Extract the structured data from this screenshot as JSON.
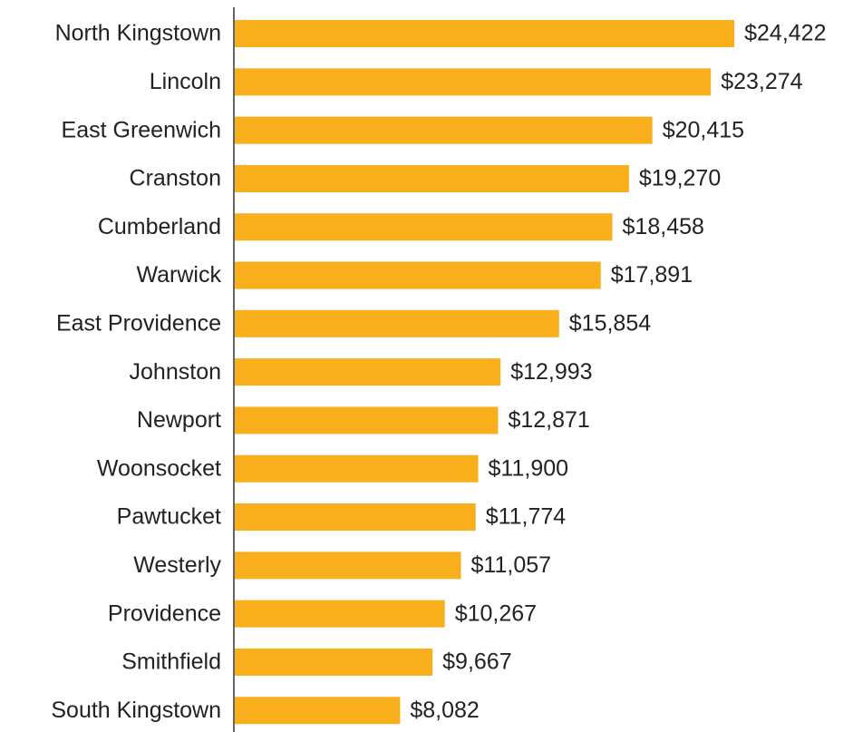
{
  "chart_data": {
    "type": "bar",
    "orientation": "horizontal",
    "categories": [
      "North Kingstown",
      "Lincoln",
      "East Greenwich",
      "Cranston",
      "Cumberland",
      "Warwick",
      "East Providence",
      "Johnston",
      "Newport",
      "Woonsocket",
      "Pawtucket",
      "Westerly",
      "Providence",
      "Smithfield",
      "South Kingstown"
    ],
    "values": [
      24422,
      23274,
      20415,
      19270,
      18458,
      17891,
      15854,
      12993,
      12871,
      11900,
      11774,
      11057,
      10267,
      9667,
      8082
    ],
    "value_labels": [
      "$24,422",
      "$23,274",
      "$20,415",
      "$19,270",
      "$18,458",
      "$17,891",
      "$15,854",
      "$12,993",
      "$12,871",
      "$11,900",
      "$11,774",
      "$11,057",
      "$10,267",
      "$9,667",
      "$8,082"
    ],
    "color": "#f9ae1b",
    "xlim": [
      0,
      30000
    ]
  }
}
